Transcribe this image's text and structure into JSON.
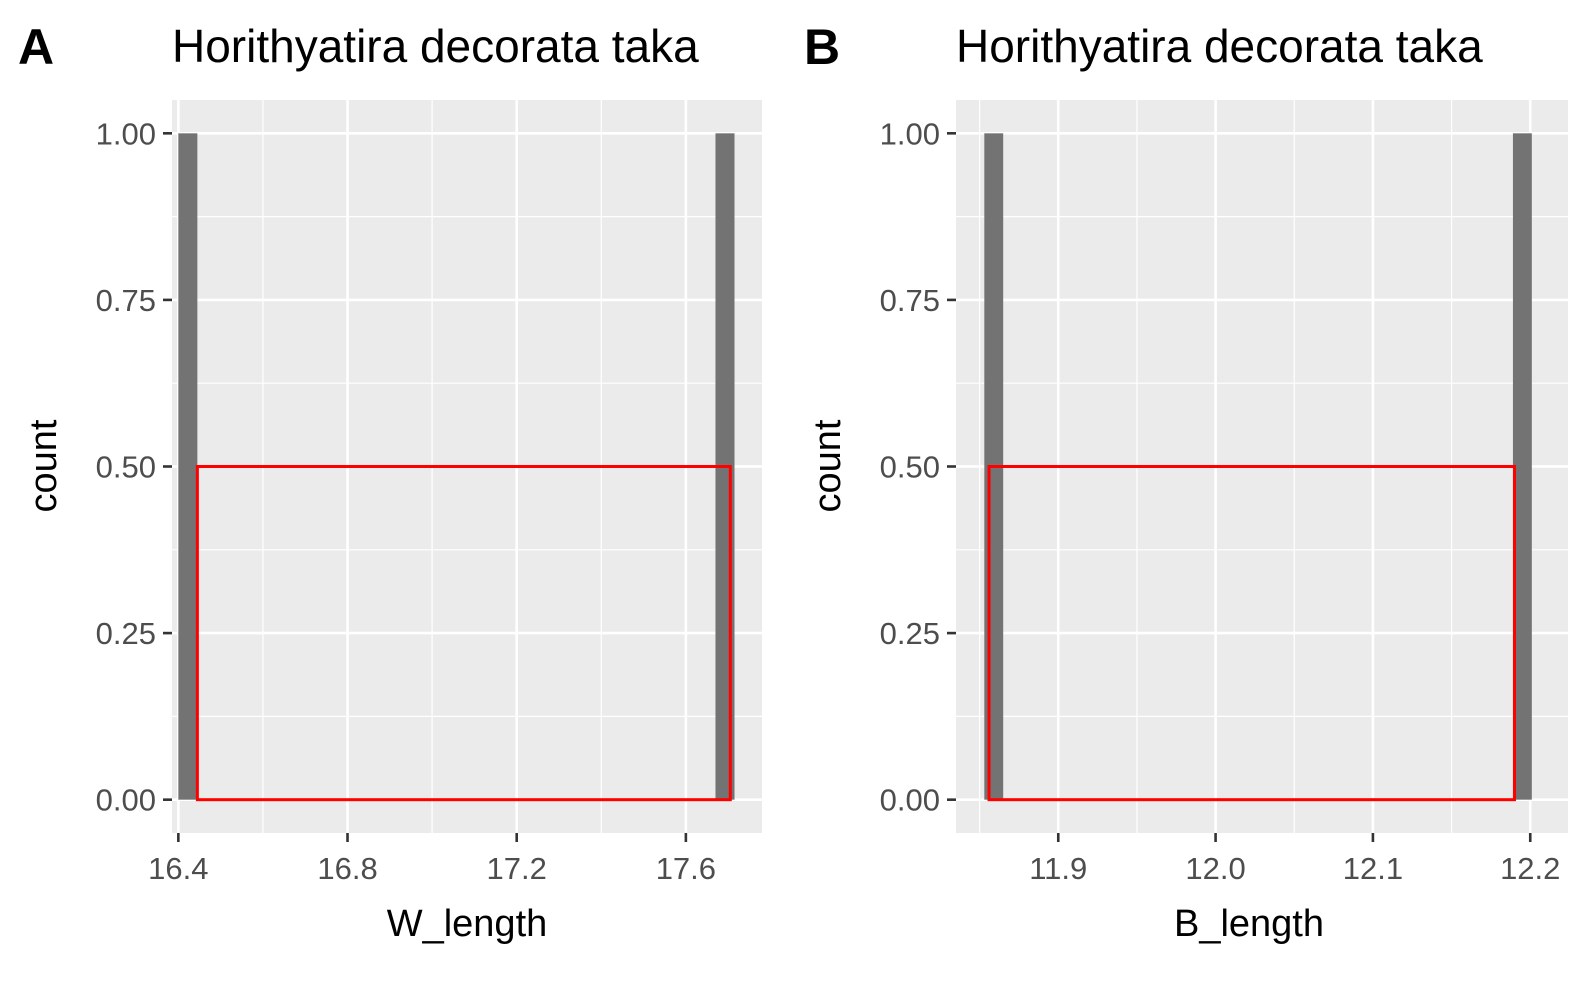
{
  "chart_data": [
    {
      "type": "histogram",
      "panel_tag": "A",
      "title": "Horithyatira decorata taka",
      "xlabel": "W_length",
      "ylabel": "count",
      "xlim": [
        16.385,
        17.78
      ],
      "ylim": [
        -0.05,
        1.05
      ],
      "x_ticks": [
        16.4,
        16.8,
        17.2,
        17.6
      ],
      "x_tick_labels": [
        "16.4",
        "16.8",
        "17.2",
        "17.6"
      ],
      "x_minor_grid": [
        16.6,
        17.0,
        17.4
      ],
      "y_ticks": [
        0,
        0.25,
        0.5,
        0.75,
        1.0
      ],
      "y_tick_labels": [
        "0.00",
        "0.25",
        "0.50",
        "0.75",
        "1.00"
      ],
      "y_minor_grid": [
        0.125,
        0.375,
        0.625,
        0.875
      ],
      "bars": [
        {
          "x_start": 16.4,
          "x_end": 16.445,
          "count": 1
        },
        {
          "x_start": 17.67,
          "x_end": 17.715,
          "count": 1
        }
      ],
      "highlight_box": {
        "x_start": 16.445,
        "x_end": 17.705,
        "y_start": 0,
        "y_end": 0.5,
        "color": "#ff0000"
      },
      "colors": {
        "panel_bg": "#ebebeb",
        "grid": "#ffffff",
        "bar": "#737373",
        "highlight": "#ff0000"
      }
    },
    {
      "type": "histogram",
      "panel_tag": "B",
      "title": "Horithyatira decorata taka",
      "xlabel": "B_length",
      "ylabel": "count",
      "xlim": [
        11.835,
        12.224
      ],
      "ylim": [
        -0.05,
        1.05
      ],
      "x_ticks": [
        11.9,
        12.0,
        12.1,
        12.2
      ],
      "x_tick_labels": [
        "11.9",
        "12.0",
        "12.1",
        "12.2"
      ],
      "x_minor_grid": [
        11.85,
        11.95,
        12.05,
        12.15
      ],
      "y_ticks": [
        0,
        0.25,
        0.5,
        0.75,
        1.0
      ],
      "y_tick_labels": [
        "0.00",
        "0.25",
        "0.50",
        "0.75",
        "1.00"
      ],
      "y_minor_grid": [
        0.125,
        0.375,
        0.625,
        0.875
      ],
      "bars": [
        {
          "x_start": 11.853,
          "x_end": 11.865,
          "count": 1
        },
        {
          "x_start": 12.189,
          "x_end": 12.201,
          "count": 1
        }
      ],
      "highlight_box": {
        "x_start": 11.856,
        "x_end": 12.19,
        "y_start": 0,
        "y_end": 0.5,
        "color": "#ff0000"
      },
      "colors": {
        "panel_bg": "#ebebeb",
        "grid": "#ffffff",
        "bar": "#737373",
        "highlight": "#ff0000"
      }
    }
  ]
}
